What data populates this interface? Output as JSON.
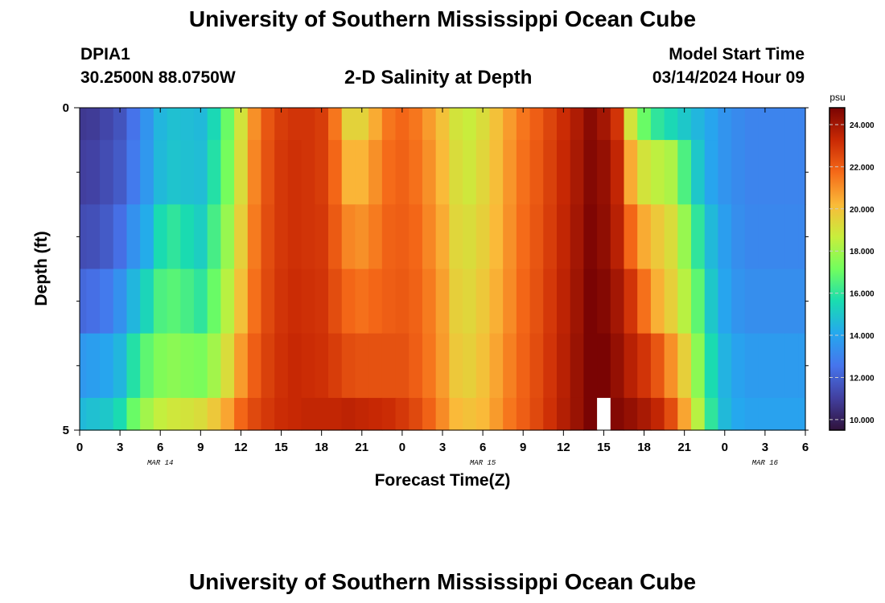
{
  "header": {
    "title": "University of Southern Mississippi Ocean Cube",
    "station_id": "DPIA1",
    "station_coords": "30.2500N  88.0750W",
    "plot_title": "2-D Salinity at Depth",
    "model_start_label": "Model Start Time",
    "model_start_value": "03/14/2024 Hour 09"
  },
  "footer": {
    "title": "University of Southern Mississippi Ocean Cube"
  },
  "chart_data": {
    "type": "heatmap",
    "xlabel": "Forecast Time(Z)",
    "ylabel": "Depth (ft)",
    "x_tick_labels": [
      "0",
      "3",
      "6",
      "9",
      "12",
      "15",
      "18",
      "21",
      "0",
      "3",
      "6",
      "9",
      "12",
      "15",
      "18",
      "21",
      "0",
      "3",
      "6"
    ],
    "x_day_labels": [
      {
        "label": "MAR 14",
        "tick_index": 2
      },
      {
        "label": "MAR 15",
        "tick_index": 10
      },
      {
        "label": "MAR 16",
        "tick_index": 17
      }
    ],
    "x_range_hours": [
      0,
      54
    ],
    "y_tick_labels": [
      "0",
      "5"
    ],
    "y_range": [
      0,
      5
    ],
    "colorbar": {
      "unit": "psu",
      "tick_labels": [
        "10.000",
        "12.000",
        "14.000",
        "16.000",
        "18.000",
        "20.000",
        "22.000",
        "24.000"
      ],
      "range": [
        9.5,
        24.8
      ]
    },
    "profile_hours": [
      0,
      1,
      2,
      3,
      4,
      5,
      6,
      7,
      8,
      9,
      10,
      11,
      12,
      13,
      14,
      15,
      16,
      17,
      18,
      19,
      20,
      21,
      22,
      23,
      24,
      25,
      26,
      27,
      28,
      29,
      30,
      31,
      32,
      33,
      34,
      35,
      36,
      37,
      38,
      39,
      40,
      41,
      42,
      43,
      44,
      45,
      46,
      47,
      48,
      49,
      50,
      51,
      52,
      53,
      54
    ],
    "depth_layers": [
      0,
      1,
      2,
      3,
      4,
      5
    ],
    "rows": [
      [
        10.8,
        10.9,
        11.2,
        11.6,
        12.5,
        13.5,
        14.5,
        14.8,
        14.7,
        14.6,
        15.5,
        17.0,
        19.0,
        21.0,
        22.2,
        22.8,
        23.0,
        23.0,
        22.8,
        21.5,
        19.5,
        19.5,
        20.5,
        21.5,
        21.8,
        21.5,
        20.8,
        20.0,
        19.0,
        18.7,
        19.2,
        20.0,
        20.8,
        21.5,
        22.0,
        22.6,
        23.2,
        23.8,
        24.5,
        24.0,
        23.0,
        19.0,
        17.0,
        16.0,
        15.5,
        15.0,
        14.5,
        14.0,
        13.5,
        13.2,
        13.0,
        13.0,
        13.0,
        13.0,
        13.0
      ],
      [
        11.0,
        11.1,
        11.4,
        11.8,
        12.7,
        13.6,
        14.6,
        14.9,
        14.8,
        14.7,
        15.8,
        17.2,
        19.2,
        21.2,
        22.3,
        22.9,
        23.1,
        23.0,
        22.8,
        21.8,
        20.3,
        20.3,
        21.0,
        21.7,
        21.9,
        21.6,
        21.0,
        20.2,
        19.2,
        18.9,
        19.4,
        20.1,
        20.9,
        21.6,
        22.1,
        22.7,
        23.3,
        23.9,
        24.6,
        24.3,
        23.4,
        20.5,
        19.0,
        18.5,
        18.2,
        16.5,
        15.0,
        14.0,
        13.5,
        13.2,
        13.0,
        13.0,
        13.0,
        13.0,
        13.0
      ],
      [
        11.4,
        11.5,
        11.8,
        12.4,
        13.4,
        14.2,
        15.6,
        16.0,
        15.6,
        15.2,
        16.4,
        17.8,
        19.6,
        21.4,
        22.4,
        22.9,
        23.1,
        23.0,
        22.9,
        22.1,
        21.2,
        21.0,
        21.4,
        21.9,
        22.0,
        21.8,
        21.2,
        20.5,
        19.4,
        19.2,
        19.6,
        20.2,
        21.0,
        21.7,
        22.2,
        22.8,
        23.4,
        24.0,
        24.7,
        24.4,
        23.6,
        21.8,
        20.5,
        19.8,
        19.2,
        17.8,
        16.0,
        14.6,
        13.8,
        13.3,
        13.1,
        13.1,
        13.1,
        13.1,
        13.1
      ],
      [
        12.2,
        12.4,
        12.7,
        13.4,
        14.5,
        15.4,
        16.5,
        16.7,
        16.4,
        16.0,
        17.0,
        18.4,
        20.0,
        21.6,
        22.5,
        23.0,
        23.2,
        23.1,
        23.0,
        22.4,
        21.8,
        21.6,
        21.8,
        22.0,
        22.1,
        21.9,
        21.4,
        20.7,
        19.6,
        19.4,
        19.8,
        20.4,
        21.1,
        21.8,
        22.3,
        22.9,
        23.5,
        24.1,
        24.8,
        24.6,
        24.0,
        23.0,
        21.6,
        20.4,
        19.6,
        18.4,
        16.8,
        15.0,
        14.0,
        13.5,
        13.3,
        13.3,
        13.3,
        13.3,
        13.3
      ],
      [
        13.6,
        13.8,
        14.0,
        14.5,
        15.8,
        16.8,
        17.4,
        17.6,
        17.4,
        17.3,
        18.0,
        19.2,
        20.8,
        22.0,
        22.7,
        23.1,
        23.3,
        23.2,
        23.1,
        22.8,
        22.4,
        22.3,
        22.3,
        22.3,
        22.3,
        22.0,
        21.5,
        20.8,
        19.8,
        19.6,
        20.0,
        20.6,
        21.3,
        21.9,
        22.4,
        23.0,
        23.6,
        24.2,
        24.8,
        24.8,
        24.3,
        23.6,
        23.0,
        22.2,
        21.0,
        19.6,
        17.6,
        15.6,
        14.4,
        13.9,
        13.7,
        13.7,
        13.7,
        13.7,
        13.7
      ],
      [
        14.6,
        14.8,
        15.0,
        15.6,
        17.0,
        18.0,
        18.6,
        18.9,
        19.0,
        19.2,
        19.8,
        20.6,
        21.8,
        22.5,
        22.9,
        23.2,
        23.3,
        23.4,
        23.4,
        23.4,
        23.5,
        23.4,
        23.3,
        23.2,
        22.9,
        22.5,
        21.9,
        21.1,
        20.2,
        20.0,
        20.2,
        20.8,
        21.5,
        22.0,
        22.5,
        23.1,
        23.7,
        24.2,
        24.8,
        null,
        24.6,
        24.3,
        23.9,
        23.4,
        22.4,
        20.6,
        18.4,
        16.0,
        14.6,
        14.1,
        13.9,
        13.9,
        13.9,
        13.9,
        13.9
      ]
    ]
  }
}
